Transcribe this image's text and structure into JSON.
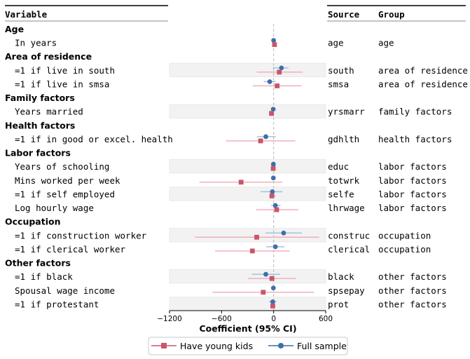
{
  "chart_data": {
    "type": "forest",
    "headers": {
      "variable": "Variable",
      "source": "Source",
      "group": "Group"
    },
    "xlabel": "Coefficient (95% CI)",
    "xlim": [
      -1200,
      600
    ],
    "xticks": [
      "−1200",
      "−600",
      "0",
      "600"
    ],
    "xtick_values": [
      -1200,
      -600,
      0,
      600
    ],
    "reference_line": 0,
    "series": [
      {
        "key": "young",
        "name": "Have young kids",
        "color": "#c8566a",
        "ci_color": "#f0a9b6",
        "marker": "square"
      },
      {
        "key": "full",
        "name": "Full sample",
        "color": "#3f6fa8",
        "ci_color": "#9cbde0",
        "marker": "circle"
      }
    ],
    "groups": [
      {
        "label": "Age",
        "rows": [
          {
            "label": "In years",
            "source": "age",
            "group": "age",
            "full": {
              "est": 0,
              "lo": -12,
              "hi": 12
            },
            "young": {
              "est": 10,
              "lo": -5,
              "hi": 25
            }
          }
        ]
      },
      {
        "label": "Area of residence",
        "rows": [
          {
            "label": "=1 if live in south",
            "source": "south",
            "group": "area of residence",
            "full": {
              "est": 90,
              "lo": -10,
              "hi": 170
            },
            "young": {
              "est": 65,
              "lo": -195,
              "hi": 335
            }
          },
          {
            "label": "=1 if live in smsa",
            "source": "smsa",
            "group": "area of residence",
            "full": {
              "est": -45,
              "lo": -115,
              "hi": 25
            },
            "young": {
              "est": 40,
              "lo": -240,
              "hi": 320
            }
          }
        ]
      },
      {
        "label": "Family factors",
        "rows": [
          {
            "label": "Years married",
            "source": "yrsmarr",
            "group": "family factors",
            "full": {
              "est": -5,
              "lo": -15,
              "hi": 5
            },
            "young": {
              "est": -25,
              "lo": -45,
              "hi": -5
            }
          }
        ]
      },
      {
        "label": "Health factors",
        "rows": [
          {
            "label": "=1 if in good or excel. health",
            "source": "gdhlth",
            "group": "health factors",
            "full": {
              "est": -90,
              "lo": -195,
              "hi": 25
            },
            "young": {
              "est": -150,
              "lo": -550,
              "hi": 250
            }
          }
        ]
      },
      {
        "label": "Labor factors",
        "rows": [
          {
            "label": "Years of schooling",
            "source": "educ",
            "group": "labor factors",
            "full": {
              "est": -3,
              "lo": -10,
              "hi": 5
            },
            "young": {
              "est": -5,
              "lo": -20,
              "hi": 10
            }
          },
          {
            "label": "Mins worked per week",
            "source": "totwrk",
            "group": "labor factors",
            "full": {
              "est": -3,
              "lo": -6,
              "hi": 0
            },
            "young": {
              "est": -375,
              "lo": -855,
              "hi": 100
            }
          },
          {
            "label": "=1 if self employed",
            "source": "selfe",
            "group": "labor factors",
            "full": {
              "est": -15,
              "lo": -150,
              "hi": 100
            },
            "young": {
              "est": -20,
              "lo": -50,
              "hi": 25
            }
          },
          {
            "label": "Log hourly wage",
            "source": "lhrwage",
            "group": "labor factors",
            "full": {
              "est": 20,
              "lo": -30,
              "hi": 80
            },
            "young": {
              "est": 35,
              "lo": -205,
              "hi": 285
            }
          }
        ]
      },
      {
        "label": "Occupation",
        "rows": [
          {
            "label": "=1 if construction worker",
            "source": "construc",
            "group": "occupation",
            "full": {
              "est": 115,
              "lo": -95,
              "hi": 325
            },
            "young": {
              "est": -195,
              "lo": -905,
              "hi": 525
            }
          },
          {
            "label": "=1 if clerical worker",
            "source": "clerical",
            "group": "occupation",
            "full": {
              "est": 20,
              "lo": -85,
              "hi": 125
            },
            "young": {
              "est": -245,
              "lo": -675,
              "hi": 185
            }
          }
        ]
      },
      {
        "label": "Other factors",
        "rows": [
          {
            "label": "=1 if black",
            "source": "black",
            "group": "other factors",
            "full": {
              "est": -90,
              "lo": -250,
              "hi": 75
            },
            "young": {
              "est": -20,
              "lo": -295,
              "hi": 255
            }
          },
          {
            "label": "Spousal wage income",
            "source": "spsepay",
            "group": "other factors",
            "full": {
              "est": -3,
              "lo": -8,
              "hi": 2
            },
            "young": {
              "est": -120,
              "lo": -705,
              "hi": 465
            }
          },
          {
            "label": "=1 if protestant",
            "source": "prot",
            "group": "other factors",
            "full": {
              "est": -10,
              "lo": -55,
              "hi": 35
            },
            "young": {
              "est": -10,
              "lo": -30,
              "hi": 10
            }
          }
        ]
      }
    ]
  }
}
